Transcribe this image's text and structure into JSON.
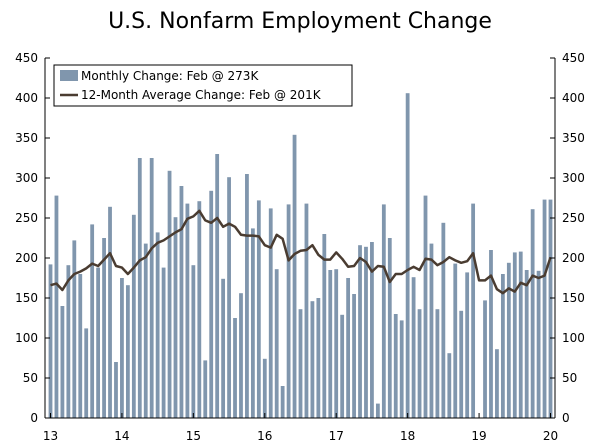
{
  "chart_data": {
    "type": "bar",
    "title": "U.S. Nonfarm Employment Change",
    "xlabel": "",
    "ylabel": "",
    "ylim": [
      0,
      450
    ],
    "y_ticks": [
      0,
      50,
      100,
      150,
      200,
      250,
      300,
      350,
      400,
      450
    ],
    "x_tick_labels": [
      "13",
      "14",
      "15",
      "16",
      "17",
      "18",
      "19",
      "20"
    ],
    "grid": false,
    "legend_position": "top-left",
    "colors": {
      "bars": "#8096ad",
      "line": "#4a3c31",
      "axis": "#000000"
    },
    "series": [
      {
        "name": "Monthly Change: Feb @ 273K",
        "type": "bar",
        "values": [
          192,
          278,
          140,
          191,
          222,
          180,
          112,
          242,
          188,
          225,
          264,
          70,
          175,
          166,
          254,
          325,
          218,
          325,
          232,
          188,
          309,
          251,
          290,
          268,
          191,
          271,
          72,
          284,
          330,
          174,
          301,
          125,
          156,
          305,
          237,
          272,
          74,
          262,
          186,
          40,
          267,
          354,
          136,
          268,
          146,
          150,
          230,
          185,
          186,
          129,
          175,
          155,
          216,
          214,
          220,
          18,
          267,
          225,
          130,
          122,
          406,
          176,
          136,
          278,
          218,
          136,
          244,
          81,
          193,
          134,
          182,
          268,
          0,
          147,
          210,
          86,
          180,
          194,
          207,
          208,
          185,
          261,
          184,
          273,
          273
        ]
      },
      {
        "name": "12-Month Average Change: Feb @ 201K",
        "type": "line",
        "values": [
          166,
          168,
          160,
          172,
          180,
          183,
          187,
          193,
          190,
          198,
          206,
          190,
          188,
          180,
          188,
          197,
          201,
          212,
          219,
          222,
          227,
          232,
          236,
          249,
          252,
          259,
          247,
          244,
          250,
          239,
          243,
          239,
          229,
          228,
          228,
          227,
          216,
          213,
          229,
          224,
          197,
          205,
          209,
          210,
          216,
          204,
          198,
          198,
          207,
          199,
          189,
          190,
          200,
          195,
          183,
          190,
          189,
          170,
          180,
          180,
          185,
          189,
          185,
          199,
          198,
          191,
          195,
          201,
          197,
          194,
          196,
          206,
          172,
          172,
          178,
          161,
          156,
          162,
          158,
          169,
          166,
          178,
          175,
          178,
          201
        ]
      }
    ]
  }
}
